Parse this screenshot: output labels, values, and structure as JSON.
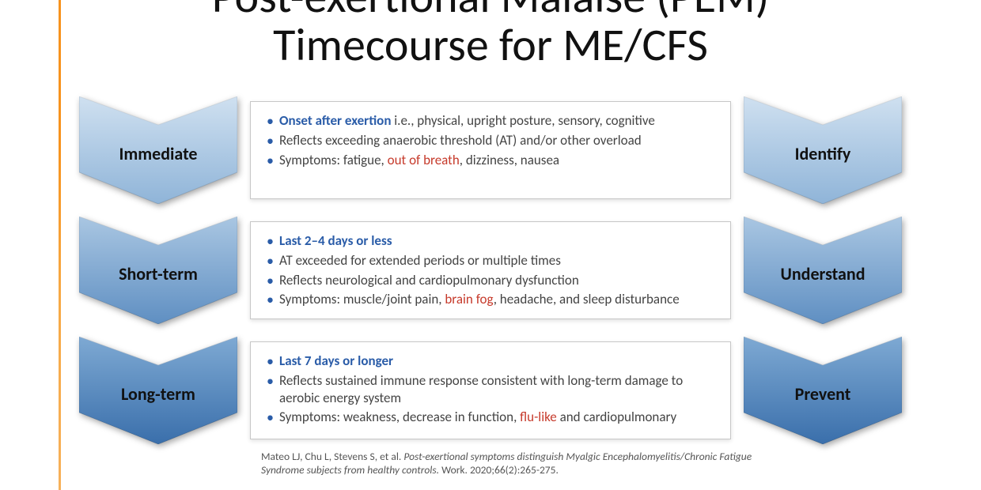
{
  "title_html": "Post-exertional Malaise (PEM)<br>Timecourse for ME/CFS",
  "colors": {
    "accent_bar": "#f7931e",
    "bullet": "#2a5ca8",
    "lead_text": "#2a5ca8",
    "highlight_text": "#c63a2b",
    "body_text": "#444444",
    "box_border": "#c7c7c7",
    "chevron_light_top": "#cfe0f0",
    "chevron_light_bot": "#8fb4d8",
    "chevron_mid_top": "#a9c6e2",
    "chevron_mid_bot": "#5f8fc2",
    "chevron_dark_top": "#7ea9d3",
    "chevron_dark_bot": "#3a6fab"
  },
  "rows": [
    {
      "left_label": "Immediate",
      "right_label": "Identify",
      "shade": "light",
      "bullets": [
        {
          "lead": "Onset after exertion",
          "rest": " i.e., physical, upright posture, sensory, cognitive"
        },
        {
          "rest": "Reflects exceeding anaerobic threshold (AT) and/or other overload"
        },
        {
          "rest_pre": "Symptoms: fatigue, ",
          "red": "out of breath",
          "rest_post": ", dizziness, nausea"
        }
      ]
    },
    {
      "left_label": "Short-term",
      "right_label": "Understand",
      "shade": "mid",
      "bullets": [
        {
          "lead": "Last 2–4 days or less"
        },
        {
          "rest": "AT exceeded for extended periods or multiple times"
        },
        {
          "rest": "Reflects neurological and cardiopulmonary dysfunction"
        },
        {
          "rest_pre": "Symptoms: muscle/joint pain, ",
          "red": "brain fog",
          "rest_post": ", headache, and sleep disturbance"
        }
      ]
    },
    {
      "left_label": "Long-term",
      "right_label": "Prevent",
      "shade": "dark",
      "bullets": [
        {
          "lead": "Last 7 days or longer"
        },
        {
          "rest": "Reflects sustained immune response consistent with long-term damage to aerobic energy system"
        },
        {
          "rest_pre": "Symptoms: weakness, decrease in function, ",
          "red": "flu-like",
          "rest_post": " and cardiopulmonary"
        }
      ]
    }
  ],
  "citation": {
    "authors": "Mateo LJ, Chu L, Stevens S, et al. ",
    "title_italic": "Post-exertional symptoms distinguish Myalgic Encephalomyelitis/Chronic Fatigue Syndrome subjects from healthy controls.",
    "tail": " Work. 2020;66(2):265-275."
  }
}
